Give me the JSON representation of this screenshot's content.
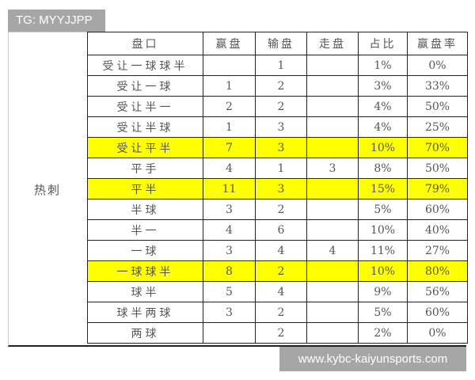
{
  "watermark_top": "TG: MYYJJPP",
  "watermark_bottom": "www.kybc-kaiyunsports.com",
  "team": "热刺",
  "highlight_color": "#ffff00",
  "columns": [
    "盘口",
    "赢盘",
    "输盘",
    "走盘",
    "占比",
    "赢盘率"
  ],
  "rows": [
    {
      "cells": [
        "受让一球球半",
        "",
        "1",
        "",
        "1%",
        "0%"
      ],
      "highlight": false
    },
    {
      "cells": [
        "受让一球",
        "1",
        "2",
        "",
        "3%",
        "33%"
      ],
      "highlight": false
    },
    {
      "cells": [
        "受让半一",
        "2",
        "2",
        "",
        "4%",
        "50%"
      ],
      "highlight": false
    },
    {
      "cells": [
        "受让半球",
        "1",
        "3",
        "",
        "4%",
        "25%"
      ],
      "highlight": false
    },
    {
      "cells": [
        "受让平半",
        "7",
        "3",
        "",
        "10%",
        "70%"
      ],
      "highlight": true
    },
    {
      "cells": [
        "平手",
        "4",
        "1",
        "3",
        "8%",
        "50%"
      ],
      "highlight": false
    },
    {
      "cells": [
        "平半",
        "11",
        "3",
        "",
        "15%",
        "79%"
      ],
      "highlight": true
    },
    {
      "cells": [
        "半球",
        "3",
        "2",
        "",
        "5%",
        "60%"
      ],
      "highlight": false
    },
    {
      "cells": [
        "半一",
        "4",
        "6",
        "",
        "10%",
        "40%"
      ],
      "highlight": false
    },
    {
      "cells": [
        "一球",
        "3",
        "4",
        "4",
        "11%",
        "27%"
      ],
      "highlight": false
    },
    {
      "cells": [
        "一球球半",
        "8",
        "2",
        "",
        "10%",
        "80%"
      ],
      "highlight": true
    },
    {
      "cells": [
        "球半",
        "5",
        "4",
        "",
        "9%",
        "56%"
      ],
      "highlight": false
    },
    {
      "cells": [
        "球半两球",
        "3",
        "2",
        "",
        "5%",
        "60%"
      ],
      "highlight": false
    },
    {
      "cells": [
        "两球",
        "",
        "2",
        "",
        "2%",
        "0%"
      ],
      "highlight": false
    }
  ]
}
